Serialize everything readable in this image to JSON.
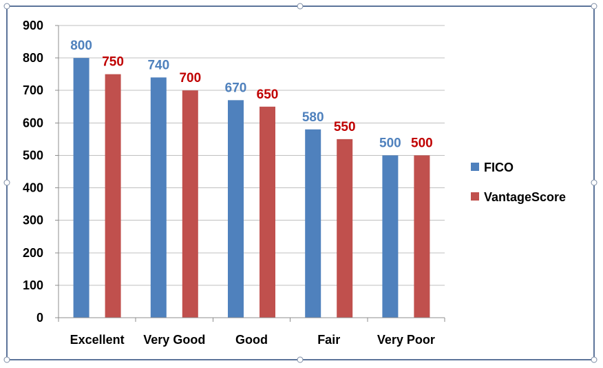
{
  "chart_data": {
    "type": "bar",
    "categories": [
      "Excellent",
      "Very Good",
      "Good",
      "Fair",
      "Very Poor"
    ],
    "series": [
      {
        "name": "FICO",
        "values": [
          800,
          740,
          670,
          580,
          500
        ],
        "color": "#4f81bd",
        "label_color": "#4f81bd"
      },
      {
        "name": "VantageScore",
        "values": [
          750,
          700,
          650,
          550,
          500
        ],
        "color": "#c0504d",
        "label_color": "#c00000"
      }
    ],
    "y_ticks": [
      "0",
      "100",
      "200",
      "300",
      "400",
      "500",
      "600",
      "700",
      "800",
      "900"
    ],
    "ylim": [
      0,
      900
    ],
    "grid": true,
    "legend_position": "right",
    "data_labels": true
  }
}
